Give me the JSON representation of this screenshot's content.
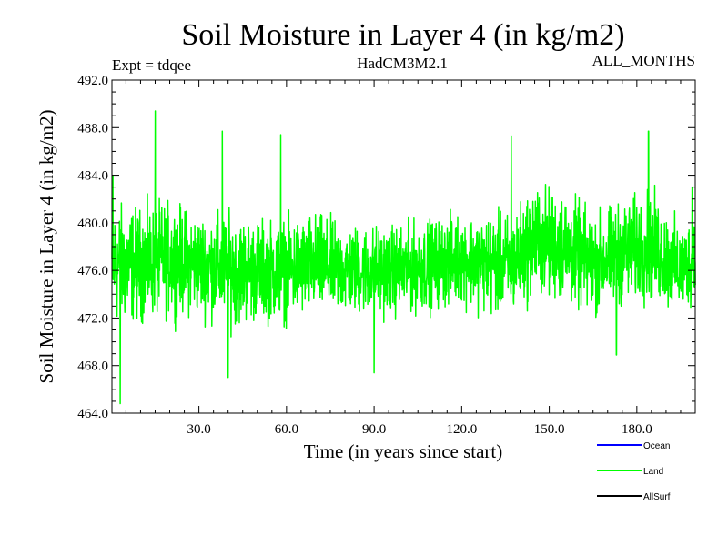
{
  "chart_data": {
    "type": "line",
    "title": "Soil Moisture in Layer 4 (in kg/m2)",
    "subtitle_left": "Expt = tdqee",
    "subtitle_center": "HadCM3M2.1",
    "subtitle_right": "ALL_MONTHS",
    "xlabel": "Time (in years since start)",
    "ylabel": "Soil Moisture in Layer 4 (in kg/m2)",
    "xlim": [
      0.2,
      200
    ],
    "ylim": [
      464.0,
      492.0
    ],
    "xticks": [
      30,
      60,
      90,
      120,
      150,
      180
    ],
    "xtick_labels": [
      "30.0",
      "60.0",
      "90.0",
      "120.0",
      "150.0",
      "180.0"
    ],
    "yticks": [
      464,
      468,
      472,
      476,
      480,
      484,
      488,
      492
    ],
    "ytick_labels": [
      "464.0",
      "468.0",
      "472.0",
      "476.0",
      "480.0",
      "484.0",
      "488.0",
      "492.0"
    ],
    "legend": [
      {
        "name": "Ocean",
        "color": "#0000ff"
      },
      {
        "name": "Land",
        "color": "#00ff00"
      },
      {
        "name": "AllSurf",
        "color": "#000000"
      }
    ],
    "series": [
      {
        "name": "Land",
        "color": "#00ff00",
        "x_start": 0.2,
        "x_step": 0.0833,
        "count": 2400,
        "band_x": [
          0,
          10,
          20,
          30,
          40,
          50,
          60,
          70,
          80,
          90,
          100,
          110,
          120,
          130,
          137,
          145,
          155,
          165,
          175,
          185,
          195,
          200
        ],
        "band_mean": [
          476.5,
          476.5,
          477.0,
          476.5,
          476.0,
          476.0,
          476.0,
          476.5,
          476.0,
          476.0,
          476.0,
          476.5,
          477.0,
          476.5,
          476.5,
          478.5,
          478.0,
          476.5,
          477.5,
          478.0,
          476.0,
          477.0
        ],
        "band_amp": [
          5.5,
          5.0,
          5.0,
          4.5,
          5.0,
          4.5,
          4.5,
          4.5,
          4.0,
          4.0,
          4.0,
          4.0,
          4.0,
          4.5,
          4.5,
          5.0,
          5.0,
          4.5,
          4.5,
          5.0,
          4.0,
          4.0
        ],
        "peaks": [
          {
            "x": 0.5,
            "y": 484.0
          },
          {
            "x": 3.0,
            "y": 464.8
          },
          {
            "x": 15.0,
            "y": 489.4
          },
          {
            "x": 38.0,
            "y": 487.7
          },
          {
            "x": 40.0,
            "y": 467.0
          },
          {
            "x": 58.0,
            "y": 487.4
          },
          {
            "x": 90.0,
            "y": 467.4
          },
          {
            "x": 137.0,
            "y": 487.3
          },
          {
            "x": 173.0,
            "y": 468.9
          },
          {
            "x": 184.0,
            "y": 487.7
          },
          {
            "x": 199.0,
            "y": 483.0
          }
        ]
      }
    ]
  }
}
